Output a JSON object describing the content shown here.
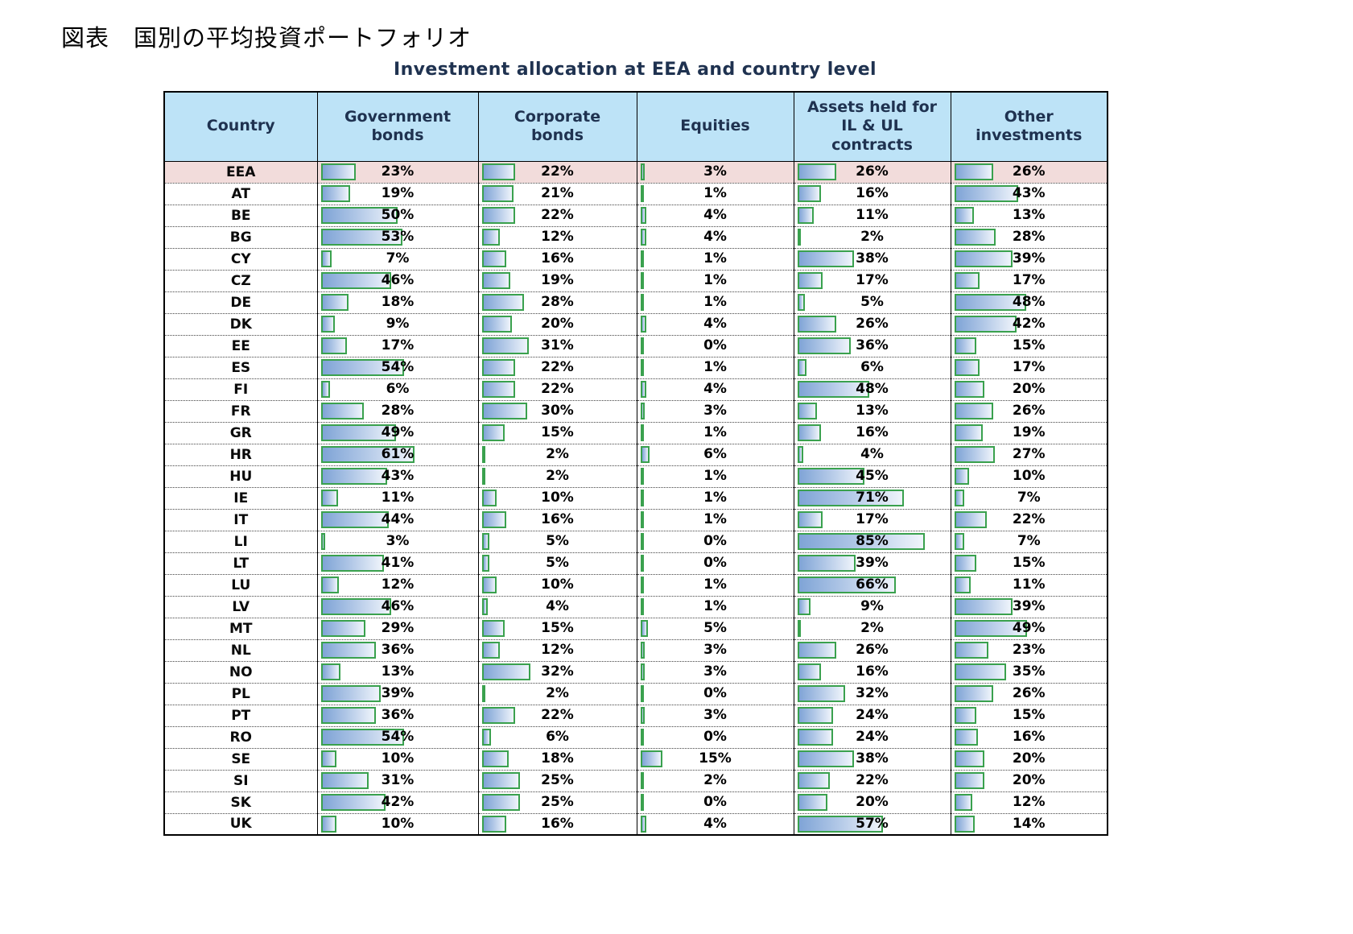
{
  "caption": "図表　国別の平均投資ポートフォリオ",
  "title": "Investment allocation at EEA and country level",
  "colors": {
    "header_bg": "#BDE3F7",
    "highlight_row_bg": "#F2DCDB",
    "bar_border": "#3AA14E",
    "bar_fill_start": "#7FA4D6",
    "bar_fill_end": "#EFF4FB",
    "title_color": "#1F3250"
  },
  "chart_data": {
    "type": "table",
    "title": "Investment allocation at EEA and country level",
    "unit": "%",
    "bar_scale": [
      0,
      100
    ],
    "legend_position": "none",
    "highlighted_row": "EEA",
    "columns": [
      "Country",
      "Government bonds",
      "Corporate bonds",
      "Equities",
      "Assets held for IL & UL contracts",
      "Other investments"
    ],
    "rows": [
      {
        "country": "EEA",
        "values": [
          23,
          22,
          3,
          26,
          26
        ]
      },
      {
        "country": "AT",
        "values": [
          19,
          21,
          1,
          16,
          43
        ]
      },
      {
        "country": "BE",
        "values": [
          50,
          22,
          4,
          11,
          13
        ]
      },
      {
        "country": "BG",
        "values": [
          53,
          12,
          4,
          2,
          28
        ]
      },
      {
        "country": "CY",
        "values": [
          7,
          16,
          1,
          38,
          39
        ]
      },
      {
        "country": "CZ",
        "values": [
          46,
          19,
          1,
          17,
          17
        ]
      },
      {
        "country": "DE",
        "values": [
          18,
          28,
          1,
          5,
          48
        ]
      },
      {
        "country": "DK",
        "values": [
          9,
          20,
          4,
          26,
          42
        ]
      },
      {
        "country": "EE",
        "values": [
          17,
          31,
          0,
          36,
          15
        ]
      },
      {
        "country": "ES",
        "values": [
          54,
          22,
          1,
          6,
          17
        ]
      },
      {
        "country": "FI",
        "values": [
          6,
          22,
          4,
          48,
          20
        ]
      },
      {
        "country": "FR",
        "values": [
          28,
          30,
          3,
          13,
          26
        ]
      },
      {
        "country": "GR",
        "values": [
          49,
          15,
          1,
          16,
          19
        ]
      },
      {
        "country": "HR",
        "values": [
          61,
          2,
          6,
          4,
          27
        ]
      },
      {
        "country": "HU",
        "values": [
          43,
          2,
          1,
          45,
          10
        ]
      },
      {
        "country": "IE",
        "values": [
          11,
          10,
          1,
          71,
          7
        ]
      },
      {
        "country": "IT",
        "values": [
          44,
          16,
          1,
          17,
          22
        ]
      },
      {
        "country": "LI",
        "values": [
          3,
          5,
          0,
          85,
          7
        ]
      },
      {
        "country": "LT",
        "values": [
          41,
          5,
          0,
          39,
          15
        ]
      },
      {
        "country": "LU",
        "values": [
          12,
          10,
          1,
          66,
          11
        ]
      },
      {
        "country": "LV",
        "values": [
          46,
          4,
          1,
          9,
          39
        ]
      },
      {
        "country": "MT",
        "values": [
          29,
          15,
          5,
          2,
          49
        ]
      },
      {
        "country": "NL",
        "values": [
          36,
          12,
          3,
          26,
          23
        ]
      },
      {
        "country": "NO",
        "values": [
          13,
          32,
          3,
          16,
          35
        ]
      },
      {
        "country": "PL",
        "values": [
          39,
          2,
          0,
          32,
          26
        ]
      },
      {
        "country": "PT",
        "values": [
          36,
          22,
          3,
          24,
          15
        ]
      },
      {
        "country": "RO",
        "values": [
          54,
          6,
          0,
          24,
          16
        ]
      },
      {
        "country": "SE",
        "values": [
          10,
          18,
          15,
          38,
          20
        ]
      },
      {
        "country": "SI",
        "values": [
          31,
          25,
          2,
          22,
          20
        ]
      },
      {
        "country": "SK",
        "values": [
          42,
          25,
          0,
          20,
          12
        ]
      },
      {
        "country": "UK",
        "values": [
          10,
          16,
          4,
          57,
          14
        ]
      }
    ]
  }
}
